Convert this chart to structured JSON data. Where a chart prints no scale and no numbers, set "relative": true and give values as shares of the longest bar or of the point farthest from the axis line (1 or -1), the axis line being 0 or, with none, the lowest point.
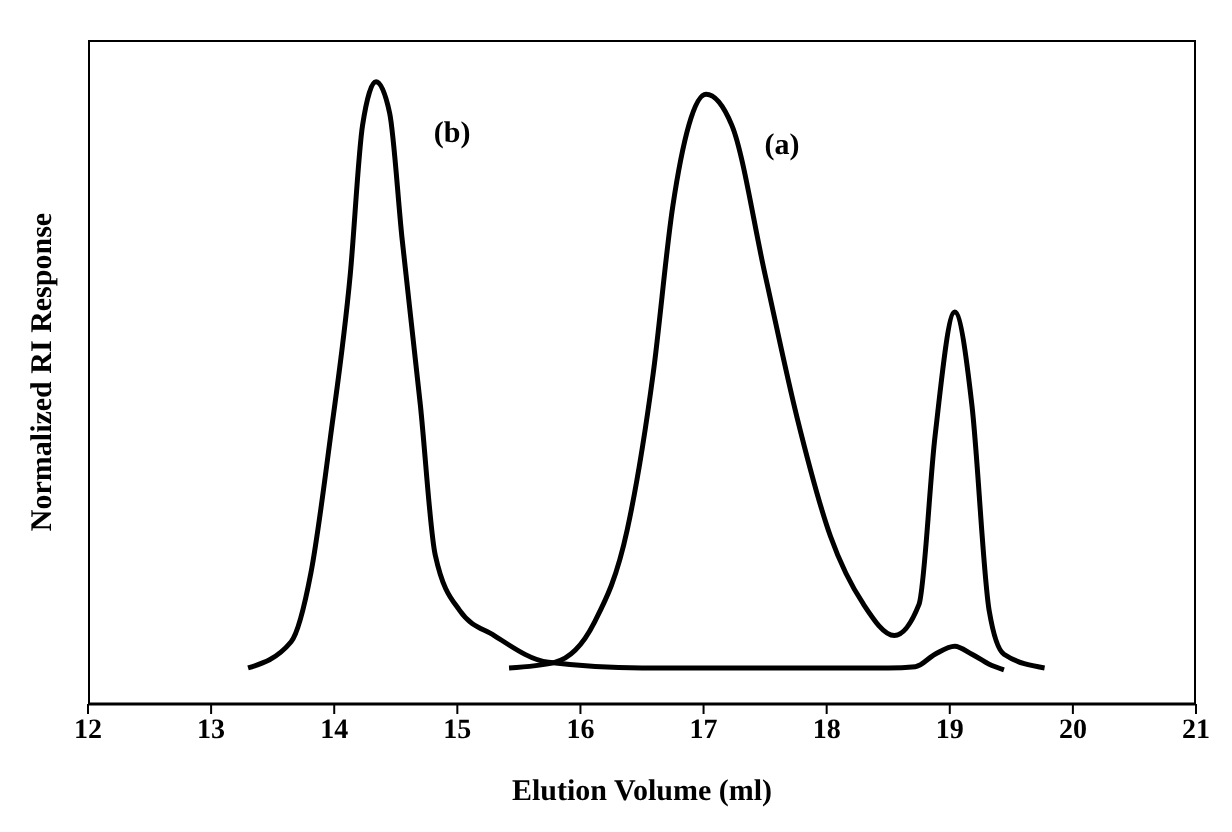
{
  "chart_data": {
    "type": "line",
    "relative": true,
    "xlabel": "Elution Volume (ml)",
    "ylabel": "Normalized RI Response",
    "xlim": [
      12,
      21
    ],
    "xticks": [
      12,
      13,
      14,
      15,
      16,
      17,
      18,
      19,
      20,
      21
    ],
    "marker": "none",
    "line_style": "solid",
    "series": [
      {
        "name": "(b)",
        "color": "#000000",
        "x": [
          13.3,
          13.65,
          13.81,
          13.97,
          14.13,
          14.23,
          14.34,
          14.45,
          14.55,
          14.7,
          14.82,
          15.02,
          15.3,
          15.74,
          16.5,
          17.5,
          18.5,
          18.72,
          18.88,
          19.04,
          19.18,
          19.32,
          19.44
        ],
        "values": [
          0.058,
          0.1,
          0.21,
          0.43,
          0.69,
          0.93,
          1,
          0.95,
          0.75,
          0.48,
          0.24,
          0.15,
          0.11,
          0.067,
          0.058,
          0.058,
          0.058,
          0.06,
          0.08,
          0.093,
          0.08,
          0.064,
          0.055
        ]
      },
      {
        "name": "(a)",
        "color": "#000000",
        "x": [
          15.42,
          15.79,
          16.11,
          16.38,
          16.59,
          16.75,
          16.88,
          17.02,
          17.23,
          17.5,
          17.76,
          18.03,
          18.3,
          18.55,
          18.75,
          18.88,
          19.04,
          19.18,
          19.32,
          19.44,
          19.77
        ],
        "values": [
          0.058,
          0.067,
          0.13,
          0.28,
          0.53,
          0.8,
          0.93,
          0.98,
          0.93,
          0.69,
          0.46,
          0.27,
          0.16,
          0.11,
          0.16,
          0.43,
          0.63,
          0.48,
          0.15,
          0.08,
          0.058
        ]
      }
    ]
  }
}
